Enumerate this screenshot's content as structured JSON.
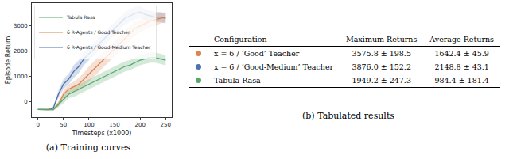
{
  "chart_data": {
    "type": "line",
    "xlabel": "Timesteps (x1000)",
    "ylabel": "Episode Return",
    "x": [
      0,
      10,
      20,
      30,
      40,
      50,
      60,
      70,
      80,
      90,
      100,
      110,
      120,
      130,
      140,
      150,
      160,
      170,
      180,
      190,
      200,
      210,
      220,
      230,
      240,
      250
    ],
    "xlim": [
      -12,
      262
    ],
    "xticks": [
      0,
      50,
      100,
      150,
      200,
      250
    ],
    "ylim": [
      -600,
      3900
    ],
    "yticks": [
      0,
      1000,
      2000,
      3000
    ],
    "grid": false,
    "legend": "upper left",
    "series": [
      {
        "name": "6 R-Agents / Good-Medium Teacher",
        "color": "#4c72b0",
        "values": [
          -300,
          -300,
          -310,
          -250,
          300,
          700,
          900,
          1200,
          1400,
          1700,
          1900,
          2100,
          2300,
          2500,
          2700,
          2900,
          3100,
          3300,
          3400,
          3500,
          3550,
          3450,
          3400,
          3350,
          3350,
          3300
        ],
        "error": [
          20,
          20,
          30,
          80,
          150,
          200,
          200,
          250,
          250,
          250,
          250,
          250,
          250,
          250,
          250,
          250,
          250,
          250,
          250,
          250,
          250,
          200,
          200,
          200,
          200,
          200
        ]
      },
      {
        "name": "6 R-Agents / Good Teacher",
        "color": "#dd8452",
        "values": [
          -300,
          -300,
          -310,
          -300,
          -100,
          300,
          500,
          600,
          700,
          900,
          1100,
          1300,
          1500,
          1700,
          1900,
          2100,
          2300,
          2500,
          2700,
          2900,
          3000,
          3100,
          3200,
          3250,
          3300,
          3350
        ],
        "error": [
          20,
          20,
          30,
          50,
          100,
          150,
          200,
          200,
          250,
          250,
          300,
          300,
          300,
          300,
          300,
          300,
          300,
          300,
          300,
          300,
          250,
          250,
          250,
          250,
          200,
          200
        ]
      },
      {
        "name": "Tabula Rasa",
        "color": "#55a868",
        "values": [
          -300,
          -300,
          -310,
          -300,
          -100,
          100,
          300,
          400,
          500,
          600,
          700,
          800,
          900,
          1000,
          1100,
          1200,
          1300,
          1400,
          1450,
          1550,
          1650,
          1700,
          1750,
          1750,
          1700,
          1650
        ],
        "error": [
          20,
          20,
          30,
          50,
          100,
          150,
          150,
          200,
          200,
          200,
          200,
          200,
          200,
          200,
          200,
          200,
          200,
          200,
          200,
          200,
          200,
          200,
          200,
          200,
          200,
          200
        ]
      }
    ]
  },
  "table": {
    "header": [
      "Configuration",
      "Maximum Returns",
      "Average Returns"
    ],
    "rows": [
      {
        "color": "#dd8452",
        "cells": [
          "x = 6 / ‘Good’ Teacher",
          "3575.8 ± 198.5",
          "1642.4 ± 45.9"
        ]
      },
      {
        "color": "#4c72b0",
        "cells": [
          "x = 6 / ‘Good-Medium’ Teacher",
          "3876.0 ± 152.2",
          "2148.8 ± 43.1"
        ]
      },
      {
        "color": "#55a868",
        "cells": [
          "Tabula Rasa",
          "1949.2 ± 247.3",
          "984.4 ± 181.4"
        ]
      }
    ]
  },
  "captions": {
    "chart": "(a) Training curves",
    "table": "(b) Tabulated results"
  }
}
